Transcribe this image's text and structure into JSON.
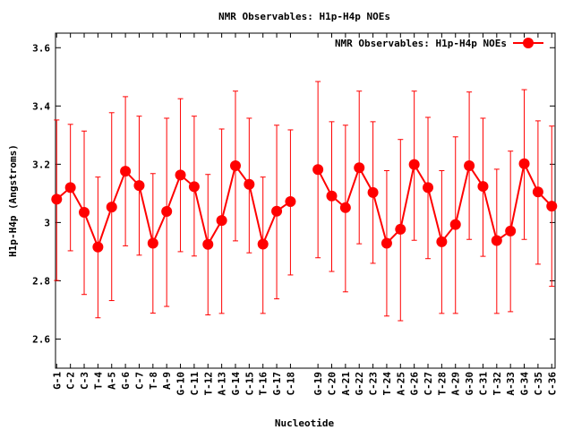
{
  "chart_data": {
    "type": "line",
    "title": "NMR Observables: H1p-H4p NOEs",
    "xlabel": "Nucleotide",
    "ylabel": "H1p-H4p (Angstroms)",
    "ylim": [
      2.5,
      3.65
    ],
    "yticks": [
      2.6,
      2.8,
      3,
      3.2,
      3.4,
      3.6
    ],
    "ytick_labels": [
      "2.6",
      "2.8",
      "3",
      "3.2",
      "3.4",
      "3.6"
    ],
    "legend": {
      "label": "NMR Observables: H1p-H4p NOEs",
      "position": "top-right"
    },
    "grid": false,
    "color": "#ff0000",
    "series": [
      {
        "name": "NMR Observables: H1p-H4p NOEs",
        "segments": [
          {
            "categories": [
              "G-1",
              "C-2",
              "C-3",
              "T-4",
              "A-5",
              "G-6",
              "C-7",
              "T-8",
              "A-9",
              "G-10",
              "C-11",
              "T-12",
              "A-13",
              "G-14",
              "C-15",
              "T-16",
              "G-17",
              "C-18"
            ],
            "values": [
              3.08,
              3.12,
              3.035,
              2.916,
              3.053,
              3.176,
              3.127,
              2.929,
              3.038,
              3.163,
              3.123,
              2.925,
              3.007,
              3.195,
              3.131,
              2.926,
              3.039,
              3.072
            ],
            "err_high": [
              3.352,
              3.337,
              3.314,
              3.156,
              3.377,
              3.432,
              3.365,
              3.168,
              3.358,
              3.425,
              3.365,
              3.165,
              3.321,
              3.451,
              3.358,
              3.156,
              3.334,
              3.318
            ],
            "err_low": [
              2.801,
              2.903,
              2.753,
              2.673,
              2.732,
              2.92,
              2.888,
              2.689,
              2.712,
              2.9,
              2.885,
              2.683,
              2.688,
              2.937,
              2.896,
              2.688,
              2.738,
              2.82
            ]
          },
          {
            "categories": [
              "G-19",
              "C-20",
              "A-21",
              "G-22",
              "C-23",
              "T-24",
              "A-25",
              "G-26",
              "C-27",
              "T-28",
              "A-29",
              "G-30",
              "C-31",
              "T-32",
              "A-33",
              "G-34",
              "C-35",
              "C-36"
            ],
            "values": [
              3.182,
              3.091,
              3.051,
              3.188,
              3.103,
              2.929,
              2.977,
              3.199,
              3.12,
              2.934,
              2.993,
              3.195,
              3.124,
              2.938,
              2.971,
              3.202,
              3.105,
              3.056
            ],
            "err_high": [
              3.484,
              3.346,
              3.334,
              3.451,
              3.346,
              3.178,
              3.285,
              3.451,
              3.361,
              3.178,
              3.294,
              3.448,
              3.358,
              3.183,
              3.245,
              3.456,
              3.349,
              3.331
            ],
            "err_low": [
              2.879,
              2.832,
              2.762,
              2.927,
              2.86,
              2.679,
              2.663,
              2.939,
              2.876,
              2.688,
              2.688,
              2.942,
              2.884,
              2.688,
              2.694,
              2.942,
              2.857,
              2.781
            ]
          }
        ]
      }
    ]
  }
}
